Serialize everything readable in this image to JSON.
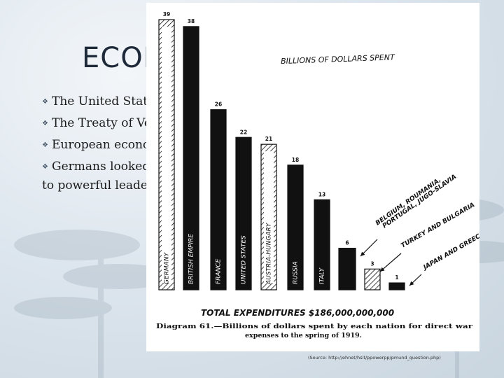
{
  "slide": {
    "title": "ECON",
    "bullets": [
      {
        "text": "The United States"
      },
      {
        "text": "The Treaty of Ver"
      },
      {
        "text": "European econom"
      },
      {
        "text": "Germans looked t",
        "continuation": "to powerful leaders"
      }
    ],
    "source": "(Source: http://ehnet/hsit/ppowerpp/pmund_question.php)"
  },
  "chart_data": {
    "type": "bar",
    "title": "BILLIONS OF DOLLARS SPENT",
    "categories": [
      "GERMANY",
      "BRITISH EMPIRE",
      "FRANCE",
      "UNITED STATES",
      "AUSTRIA-HUNGARY",
      "RUSSIA",
      "ITALY",
      "BELGIUM, ROUMANIA, PORTUGAL, JUGO-SLAVIA",
      "TURKEY AND BULGARIA",
      "JAPAN AND GREECE"
    ],
    "values": [
      39,
      38,
      26,
      22,
      21,
      18,
      13,
      6,
      3,
      1
    ],
    "value_labels": [
      "39",
      "38",
      "26",
      "22",
      "21",
      "18",
      "13",
      "6",
      "3",
      "1"
    ],
    "patterns": [
      "hatched",
      "solid",
      "solid",
      "solid",
      "hatched",
      "solid",
      "solid",
      "solid",
      "hatched",
      "solid"
    ],
    "total": "TOTAL EXPENDITURES $186,000,000,000",
    "caption_line1": "Diagram 61.—Billions of dollars spent by each nation for direct war",
    "caption_line2": "expenses to the spring of 1919.",
    "annotations": [
      "BELGIUM, ROUMANIA,",
      "PORTUGAL, JUGO-SLAVIA",
      "TURKEY AND BULGARIA",
      "JAPAN AND GREECE"
    ],
    "ylim": [
      0,
      39
    ],
    "colors": {
      "bar": "#111111",
      "hatch": "#111111",
      "background": "#ffffff"
    }
  }
}
